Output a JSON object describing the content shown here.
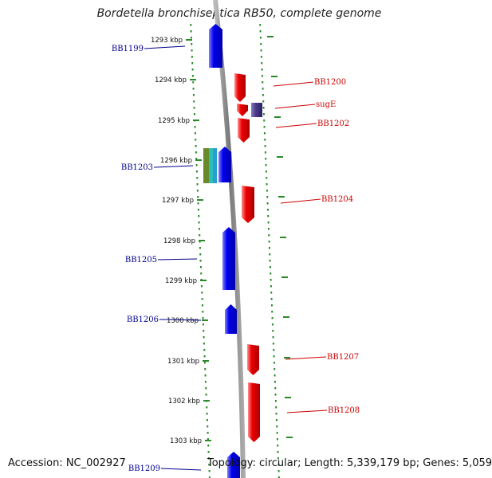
{
  "title": "Bordetella bronchiseptica RB50, complete genome",
  "ticks": [
    "1293 kbp",
    "1294 kbp",
    "1295 kbp",
    "1296 kbp",
    "1297 kbp",
    "1298 kbp",
    "1299 kbp",
    "1300 kbp",
    "1301 kbp",
    "1302 kbp",
    "1303 kbp"
  ],
  "genes": [
    {
      "name": "BB1199",
      "strand": "-",
      "color": "#0000ee",
      "label_color": "#00008b"
    },
    {
      "name": "BB1200",
      "strand": "+",
      "color": "#ee0000",
      "label_color": "#cc0000"
    },
    {
      "name": "sugE",
      "strand": "+",
      "color": "#ee0000",
      "label_color": "#cc0000"
    },
    {
      "name": "BB1202",
      "strand": "+",
      "color": "#ee0000",
      "label_color": "#cc0000"
    },
    {
      "name": "BB1203",
      "strand": "-",
      "color": "#0000ee",
      "label_color": "#00008b"
    },
    {
      "name": "BB1204",
      "strand": "+",
      "color": "#ee0000",
      "label_color": "#cc0000"
    },
    {
      "name": "BB1205",
      "strand": "-",
      "color": "#0000ee",
      "label_color": "#00008b"
    },
    {
      "name": "BB1206",
      "strand": "-",
      "color": "#0000ee",
      "label_color": "#00008b"
    },
    {
      "name": "BB1207",
      "strand": "+",
      "color": "#ee0000",
      "label_color": "#cc0000"
    },
    {
      "name": "BB1208",
      "strand": "+",
      "color": "#ee0000",
      "label_color": "#cc0000"
    },
    {
      "name": "BB1209",
      "strand": "-",
      "color": "#0000ee",
      "label_color": "#00008b"
    }
  ],
  "colors": {
    "dots": "#2a8a2a",
    "backbone": "#888888",
    "positive": "#ee0000",
    "negative": "#0000ee",
    "extra": "#4a3a8a"
  },
  "footer": {
    "accession": "Accession: NC_002927",
    "info": "Topology: circular; Length: 5,339,179 bp; Genes: 5,059"
  }
}
